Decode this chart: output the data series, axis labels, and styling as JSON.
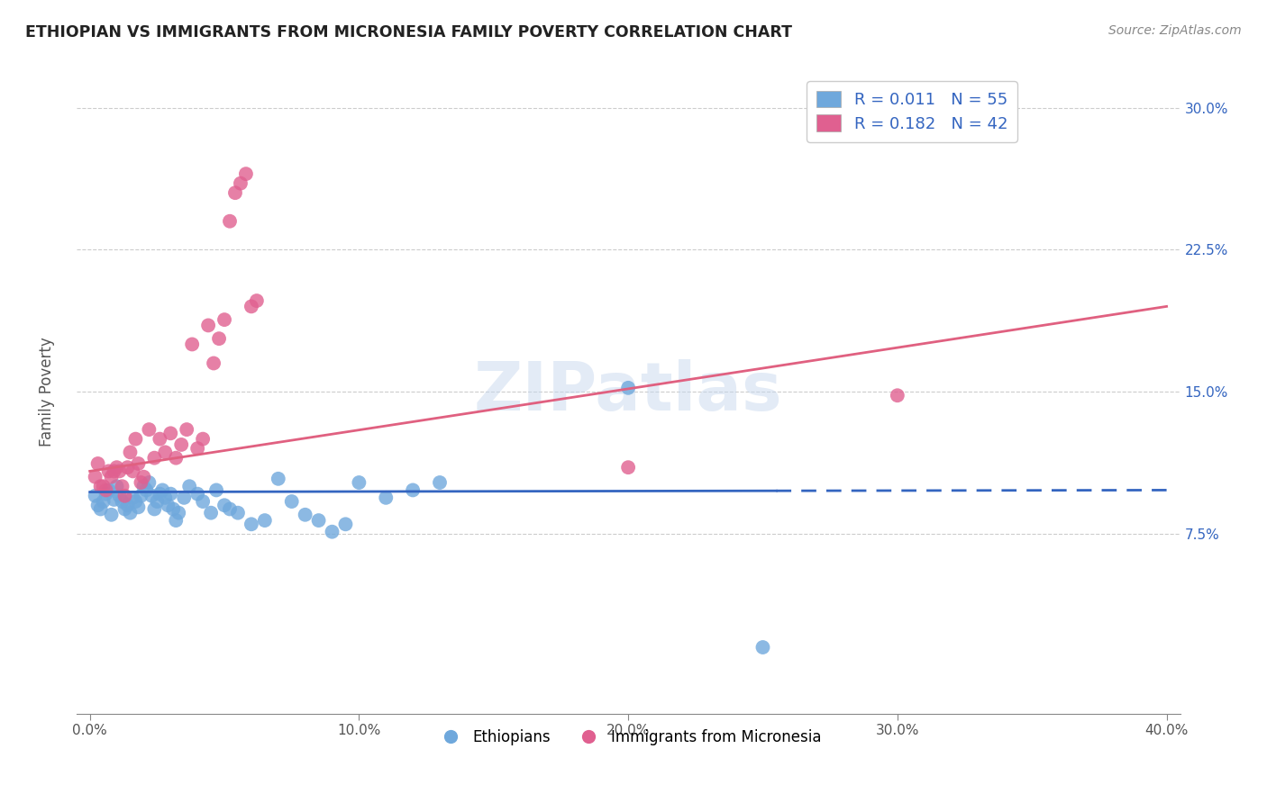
{
  "title": "ETHIOPIAN VS IMMIGRANTS FROM MICRONESIA FAMILY POVERTY CORRELATION CHART",
  "source": "Source: ZipAtlas.com",
  "xlabel": "",
  "ylabel": "Family Poverty",
  "xlim": [
    -0.005,
    0.405
  ],
  "ylim": [
    -0.02,
    0.32
  ],
  "yticks": [
    0.075,
    0.15,
    0.225,
    0.3
  ],
  "ytick_labels": [
    "7.5%",
    "15.0%",
    "22.5%",
    "30.0%"
  ],
  "xticks": [
    0.0,
    0.1,
    0.2,
    0.3,
    0.4
  ],
  "xtick_labels": [
    "0.0%",
    "10.0%",
    "20.0%",
    "30.0%",
    "40.0%"
  ],
  "blue_color": "#6fa8dc",
  "pink_color": "#e06090",
  "blue_line_color": "#3465c0",
  "pink_line_color": "#e06080",
  "watermark": "ZIPatlas",
  "blue_line_solid_end": 0.255,
  "blue_line_y0": 0.097,
  "blue_line_y1": 0.098,
  "pink_line_y0": 0.108,
  "pink_line_y1": 0.195,
  "blue_scatter_x": [
    0.002,
    0.003,
    0.004,
    0.005,
    0.006,
    0.007,
    0.008,
    0.009,
    0.01,
    0.011,
    0.012,
    0.013,
    0.014,
    0.015,
    0.016,
    0.017,
    0.018,
    0.019,
    0.02,
    0.021,
    0.022,
    0.023,
    0.024,
    0.025,
    0.026,
    0.027,
    0.028,
    0.029,
    0.03,
    0.031,
    0.032,
    0.033,
    0.035,
    0.037,
    0.04,
    0.042,
    0.045,
    0.047,
    0.05,
    0.052,
    0.055,
    0.06,
    0.065,
    0.07,
    0.075,
    0.08,
    0.085,
    0.09,
    0.095,
    0.1,
    0.11,
    0.12,
    0.13,
    0.2,
    0.25
  ],
  "blue_scatter_y": [
    0.095,
    0.09,
    0.088,
    0.092,
    0.096,
    0.098,
    0.085,
    0.093,
    0.1,
    0.095,
    0.092,
    0.088,
    0.09,
    0.086,
    0.094,
    0.092,
    0.089,
    0.095,
    0.1,
    0.098,
    0.102,
    0.095,
    0.088,
    0.092,
    0.096,
    0.098,
    0.094,
    0.09,
    0.096,
    0.088,
    0.082,
    0.086,
    0.094,
    0.1,
    0.096,
    0.092,
    0.086,
    0.098,
    0.09,
    0.088,
    0.086,
    0.08,
    0.082,
    0.104,
    0.092,
    0.085,
    0.082,
    0.076,
    0.08,
    0.102,
    0.094,
    0.098,
    0.102,
    0.152,
    0.015
  ],
  "pink_scatter_x": [
    0.002,
    0.003,
    0.004,
    0.005,
    0.006,
    0.007,
    0.008,
    0.009,
    0.01,
    0.011,
    0.012,
    0.013,
    0.014,
    0.015,
    0.016,
    0.017,
    0.018,
    0.019,
    0.02,
    0.022,
    0.024,
    0.026,
    0.028,
    0.03,
    0.032,
    0.034,
    0.036,
    0.038,
    0.04,
    0.042,
    0.044,
    0.046,
    0.048,
    0.05,
    0.052,
    0.054,
    0.056,
    0.058,
    0.06,
    0.062,
    0.3,
    0.2
  ],
  "pink_scatter_y": [
    0.105,
    0.112,
    0.1,
    0.1,
    0.098,
    0.108,
    0.105,
    0.108,
    0.11,
    0.108,
    0.1,
    0.095,
    0.11,
    0.118,
    0.108,
    0.125,
    0.112,
    0.102,
    0.105,
    0.13,
    0.115,
    0.125,
    0.118,
    0.128,
    0.115,
    0.122,
    0.13,
    0.175,
    0.12,
    0.125,
    0.185,
    0.165,
    0.178,
    0.188,
    0.24,
    0.255,
    0.26,
    0.265,
    0.195,
    0.198,
    0.148,
    0.11
  ]
}
